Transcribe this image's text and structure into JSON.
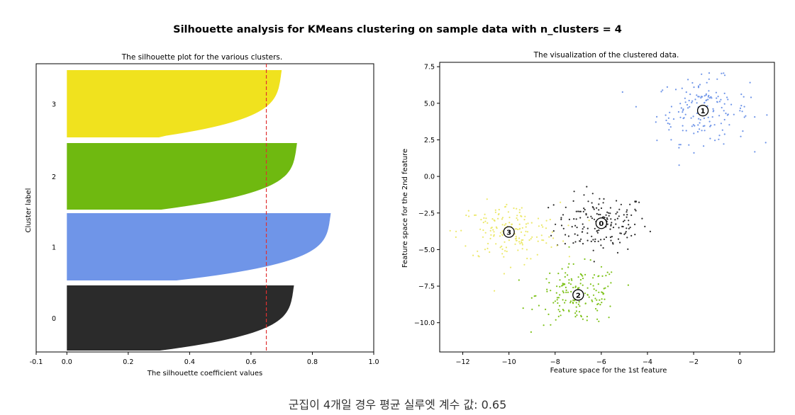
{
  "suptitle": "Silhouette analysis for KMeans clustering on sample data with n_clusters = 4",
  "caption": "군집이 4개일 경우 평균 실루엣 계수 값: 0.65",
  "chart_data": [
    {
      "type": "area",
      "title": "The silhouette plot for the various clusters.",
      "xlabel": "The silhouette coefficient values",
      "ylabel": "Cluster label",
      "xlim": [
        -0.1,
        1.0
      ],
      "xticks": [
        "-0.1",
        "0.0",
        "0.2",
        "0.4",
        "0.6",
        "0.8",
        "1.0"
      ],
      "yticks": [
        "0",
        "1",
        "2",
        "3"
      ],
      "average_silhouette": 0.65,
      "average_line_color": "#e03030",
      "clusters": [
        {
          "label": "0",
          "color": "#2b2b2b",
          "max_coef": 0.74,
          "min_coef": 0.0
        },
        {
          "label": "1",
          "color": "#6f95e8",
          "max_coef": 0.86,
          "min_coef": 0.0
        },
        {
          "label": "2",
          "color": "#6fb910",
          "max_coef": 0.75,
          "min_coef": 0.0
        },
        {
          "label": "3",
          "color": "#f0e21e",
          "max_coef": 0.7,
          "min_coef": 0.0
        }
      ]
    },
    {
      "type": "scatter",
      "title": "The visualization of the clustered data.",
      "xlabel": "Feature space for the 1st feature",
      "ylabel": "Feature space for the 2nd feature",
      "xlim": [
        -13,
        1.5
      ],
      "ylim": [
        -12,
        7.8
      ],
      "xticks": [
        "−12",
        "−10",
        "−8",
        "−6",
        "−4",
        "−2",
        "0"
      ],
      "yticks": [
        "7.5",
        "5.0",
        "2.5",
        "0.0",
        "−2.5",
        "−5.0",
        "−7.5",
        "−10.0"
      ],
      "clusters": [
        {
          "label": "0",
          "color": "#2b2b2b",
          "center": [
            -6.0,
            -3.2
          ]
        },
        {
          "label": "1",
          "color": "#6f95e8",
          "center": [
            -1.6,
            4.5
          ]
        },
        {
          "label": "2",
          "color": "#7ec21a",
          "center": [
            -7.0,
            -8.1
          ]
        },
        {
          "label": "3",
          "color": "#ece86a",
          "center": [
            -10.0,
            -3.8
          ]
        }
      ]
    }
  ]
}
